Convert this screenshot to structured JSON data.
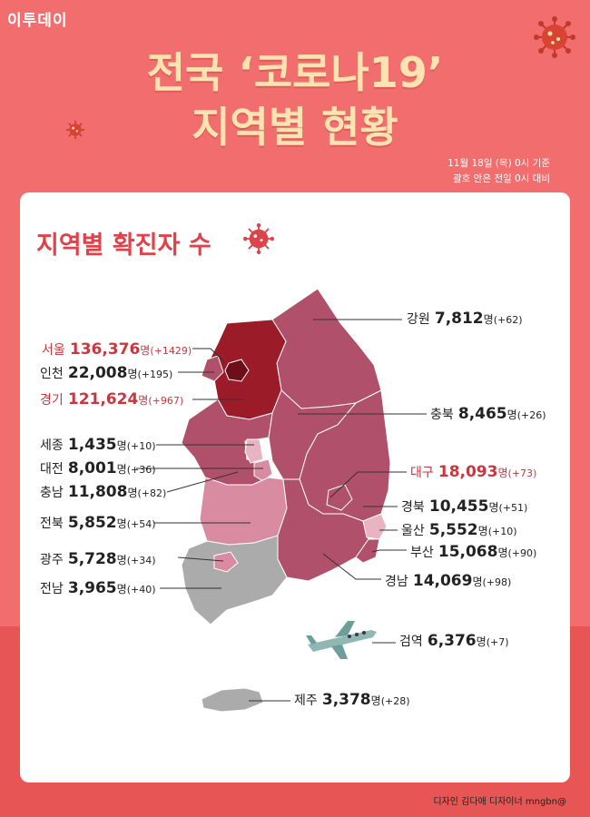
{
  "logo": "이투데이",
  "title_line1": "전국 ‘코로나19’",
  "title_line2": "지역별 현황",
  "date_note": "11월 18일 (목) 0시 기준",
  "change_note": "괄호 안은 전일 0시 대비",
  "section_title": "지역별 확진자 수",
  "unit": "명",
  "regions": [
    {
      "name": "서울",
      "count": "136,376",
      "change": "(+1429)",
      "highlight": true
    },
    {
      "name": "인천",
      "count": "22,008",
      "change": "(+195)",
      "highlight": false
    },
    {
      "name": "경기",
      "count": "121,624",
      "change": "(+967)",
      "highlight": true
    },
    {
      "name": "강원",
      "count": "7,812",
      "change": "(+62)",
      "highlight": false
    },
    {
      "name": "충북",
      "count": "8,465",
      "change": "(+26)",
      "highlight": false
    },
    {
      "name": "세종",
      "count": "1,435",
      "change": "(+10)",
      "highlight": false
    },
    {
      "name": "대전",
      "count": "8,001",
      "change": "(+36)",
      "highlight": false
    },
    {
      "name": "충남",
      "count": "11,808",
      "change": "(+82)",
      "highlight": false
    },
    {
      "name": "대구",
      "count": "18,093",
      "change": "(+73)",
      "highlight": true
    },
    {
      "name": "경북",
      "count": "10,455",
      "change": "(+51)",
      "highlight": false
    },
    {
      "name": "전북",
      "count": "5,852",
      "change": "(+54)",
      "highlight": false
    },
    {
      "name": "울산",
      "count": "5,552",
      "change": "(+10)",
      "highlight": false
    },
    {
      "name": "광주",
      "count": "5,728",
      "change": "(+34)",
      "highlight": false
    },
    {
      "name": "부산",
      "count": "15,068",
      "change": "(+90)",
      "highlight": false
    },
    {
      "name": "전남",
      "count": "3,965",
      "change": "(+40)",
      "highlight": false
    },
    {
      "name": "경남",
      "count": "14,069",
      "change": "(+98)",
      "highlight": false
    },
    {
      "name": "검역",
      "count": "6,376",
      "change": "(+7)",
      "highlight": false
    },
    {
      "name": "제주",
      "count": "3,378",
      "change": "(+28)",
      "highlight": false
    }
  ],
  "footer": "디자인 김다애 디자이너 mngbn@",
  "colors": {
    "background": "#f26e6e",
    "title": "#fde3b0",
    "section_title": "#e0424a",
    "highlight_text": "#c8373f",
    "seoul": "#6d0e1a",
    "gyeonggi": "#9b1b28",
    "mid": "#b0506a",
    "light": "#d98ba2",
    "lighter": "#e9b3c2",
    "gray": "#ababab"
  },
  "icons": [
    "virus-icon",
    "airplane-icon"
  ]
}
